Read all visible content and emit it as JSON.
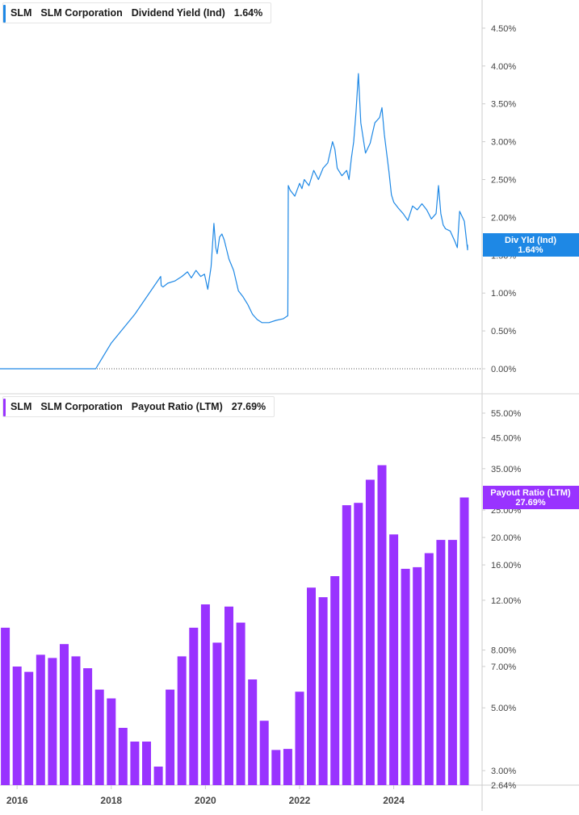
{
  "colors": {
    "yield": "#1e88e5",
    "payout": "#9933ff",
    "axis": "#cccccc",
    "tick_text": "#444444"
  },
  "legend_top": {
    "ticker": "SLM",
    "company": "SLM Corporation",
    "metric": "Dividend Yield (Ind)",
    "value": "1.64%"
  },
  "legend_bottom": {
    "ticker": "SLM",
    "company": "SLM Corporation",
    "metric": "Payout Ratio (LTM)",
    "value": "27.69%"
  },
  "chart_data": [
    {
      "type": "line",
      "y_scale": "linear",
      "ylim": [
        0,
        4.75
      ],
      "y_ticks": [
        "0.00%",
        "0.50%",
        "1.00%",
        "1.50%",
        "2.00%",
        "2.50%",
        "3.00%",
        "3.50%",
        "4.00%",
        "4.50%"
      ],
      "x_ticks": [
        "2016",
        "2018",
        "2020",
        "2022",
        "2024"
      ],
      "current_label": {
        "name": "Div Yld (Ind)",
        "value": "1.64%"
      },
      "series": [
        {
          "name": "Dividend Yield (Ind)",
          "x": [
            2015.6,
            2016.0,
            2016.5,
            2017.0,
            2017.4,
            2017.67,
            2018.0,
            2018.5,
            2019.05,
            2019.06,
            2019.1,
            2019.2,
            2019.35,
            2019.5,
            2019.62,
            2019.7,
            2019.8,
            2019.9,
            2019.98,
            2020.05,
            2020.12,
            2020.18,
            2020.22,
            2020.25,
            2020.3,
            2020.35,
            2020.4,
            2020.5,
            2020.6,
            2020.7,
            2020.8,
            2020.9,
            2021.0,
            2021.1,
            2021.2,
            2021.35,
            2021.5,
            2021.65,
            2021.75,
            2021.76,
            2021.8,
            2021.9,
            2022.0,
            2022.05,
            2022.1,
            2022.2,
            2022.3,
            2022.4,
            2022.5,
            2022.6,
            2022.7,
            2022.75,
            2022.8,
            2022.9,
            2023.0,
            2023.05,
            2023.1,
            2023.15,
            2023.2,
            2023.25,
            2023.3,
            2023.4,
            2023.5,
            2023.6,
            2023.7,
            2023.75,
            2023.8,
            2023.85,
            2023.9,
            2023.95,
            2024.0,
            2024.1,
            2024.2,
            2024.3,
            2024.4,
            2024.5,
            2024.6,
            2024.7,
            2024.8,
            2024.9,
            2024.95,
            2025.0,
            2025.05,
            2025.1,
            2025.2,
            2025.3,
            2025.35,
            2025.4,
            2025.5,
            2025.6,
            2025.7,
            2025.78
          ],
          "y": [
            0.0,
            0.0,
            0.0,
            0.0,
            0.0,
            0.0,
            0.34,
            0.72,
            1.22,
            1.1,
            1.08,
            1.13,
            1.16,
            1.22,
            1.28,
            1.2,
            1.3,
            1.22,
            1.25,
            1.05,
            1.35,
            1.92,
            1.6,
            1.52,
            1.74,
            1.78,
            1.7,
            1.45,
            1.3,
            1.03,
            0.95,
            0.85,
            0.72,
            0.65,
            0.61,
            0.61,
            0.64,
            0.66,
            0.7,
            2.42,
            2.36,
            2.28,
            2.45,
            2.38,
            2.5,
            2.42,
            2.62,
            2.5,
            2.65,
            2.72,
            3.0,
            2.9,
            2.65,
            2.55,
            2.62,
            2.5,
            2.78,
            3.0,
            3.4,
            3.9,
            3.25,
            2.85,
            2.98,
            3.25,
            3.32,
            3.45,
            3.1,
            2.85,
            2.6,
            2.3,
            2.2,
            2.12,
            2.05,
            1.96,
            2.15,
            2.1,
            2.18,
            2.1,
            1.98,
            2.05,
            2.42,
            2.05,
            1.9,
            1.85,
            1.82,
            1.68,
            1.6,
            2.08,
            1.95,
            1.57,
            1.6,
            1.64
          ]
        }
      ]
    },
    {
      "type": "bar",
      "y_scale": "log",
      "ylim": [
        2.64,
        65
      ],
      "y_ticks": [
        "2.64%",
        "3.00%",
        "5.00%",
        "7.00%",
        "8.00%",
        "12.00%",
        "16.00%",
        "20.00%",
        "25.00%",
        "35.00%",
        "45.00%",
        "55.00%"
      ],
      "x_ticks": [
        "2016",
        "2018",
        "2020",
        "2022",
        "2024"
      ],
      "current_label": {
        "name": "Payout Ratio (LTM)",
        "value": "27.69%"
      },
      "series": [
        {
          "name": "Payout Ratio (LTM)",
          "x": [
            2015.75,
            2016.0,
            2016.25,
            2016.5,
            2016.75,
            2017.0,
            2017.25,
            2017.5,
            2017.75,
            2018.0,
            2018.25,
            2018.5,
            2018.75,
            2019.0,
            2019.25,
            2019.5,
            2019.75,
            2020.0,
            2020.25,
            2020.5,
            2020.75,
            2021.0,
            2021.25,
            2021.5,
            2021.75,
            2022.0,
            2022.25,
            2022.5,
            2022.75,
            2023.0,
            2023.25,
            2023.5,
            2023.75,
            2024.0,
            2024.25,
            2024.5,
            2024.75,
            2025.0,
            2025.25,
            2025.5
          ],
          "values": [
            9.6,
            7.0,
            6.7,
            7.7,
            7.5,
            8.4,
            7.6,
            6.9,
            5.8,
            5.4,
            4.25,
            3.8,
            3.8,
            3.1,
            5.8,
            7.6,
            9.6,
            11.6,
            8.5,
            11.4,
            10.0,
            6.3,
            4.5,
            3.55,
            3.58,
            5.7,
            13.3,
            12.3,
            14.6,
            26.0,
            26.5,
            32.0,
            36.0,
            20.5,
            15.5,
            15.7,
            17.6,
            19.6,
            19.6,
            27.69
          ]
        }
      ]
    }
  ]
}
